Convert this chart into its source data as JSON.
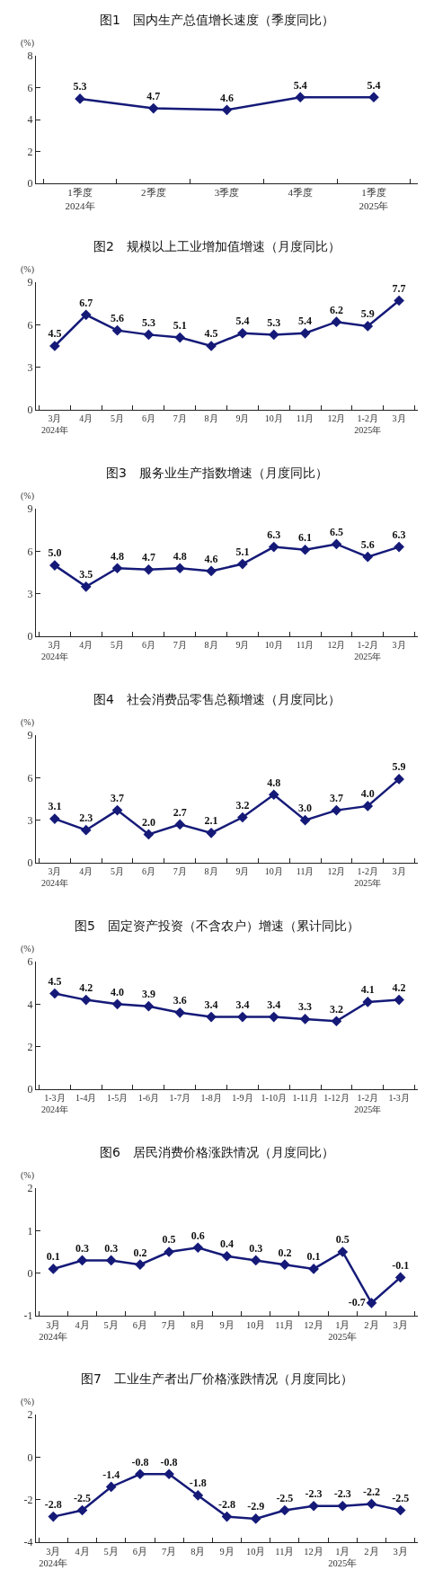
{
  "chart_data": [
    {
      "type": "line",
      "title": "图1　国内生产总值增长速度（季度同比）",
      "ylabel": "(%)",
      "categories": [
        "1季度\n2024年",
        "2季度",
        "3季度",
        "4季度",
        "1季度\n2025年"
      ],
      "series": [
        {
          "color": "#151a78",
          "values": [
            5.3,
            4.7,
            4.6,
            5.4,
            5.4
          ],
          "value_labels": [
            "5.3",
            "4.7",
            "4.6",
            "5.4",
            "5.4"
          ]
        }
      ],
      "ylim": [
        0,
        8
      ],
      "yticks": [
        0,
        2,
        4,
        6,
        8
      ],
      "marker": "diamond",
      "line_style": "solid"
    },
    {
      "type": "line",
      "title": "图2　规模以上工业增加值增速（月度同比）",
      "ylabel": "(%)",
      "categories": [
        "3月\n2024年",
        "4月",
        "5月",
        "6月",
        "7月",
        "8月",
        "9月",
        "10月",
        "11月",
        "12月",
        "1-2月\n2025年",
        "3月"
      ],
      "series": [
        {
          "color": "#151a78",
          "values": [
            4.5,
            6.7,
            5.6,
            5.3,
            5.1,
            4.5,
            5.4,
            5.3,
            5.4,
            6.2,
            5.9,
            7.7
          ],
          "value_labels": [
            "4.5",
            "6.7",
            "5.6",
            "5.3",
            "5.1",
            "4.5",
            "5.4",
            "5.3",
            "5.4",
            "6.2",
            "5.9",
            "7.7"
          ]
        }
      ],
      "ylim": [
        0,
        9
      ],
      "yticks": [
        0,
        3,
        6,
        9
      ],
      "marker": "diamond",
      "line_style": "solid"
    },
    {
      "type": "line",
      "title": "图3　服务业生产指数增速（月度同比）",
      "ylabel": "(%)",
      "categories": [
        "3月\n2024年",
        "4月",
        "5月",
        "6月",
        "7月",
        "8月",
        "9月",
        "10月",
        "11月",
        "12月",
        "1-2月\n2025年",
        "3月"
      ],
      "series": [
        {
          "color": "#151a78",
          "values": [
            5.0,
            3.5,
            4.8,
            4.7,
            4.8,
            4.6,
            5.1,
            6.3,
            6.1,
            6.5,
            5.6,
            6.3
          ],
          "value_labels": [
            "5.0",
            "3.5",
            "4.8",
            "4.7",
            "4.8",
            "4.6",
            "5.1",
            "6.3",
            "6.1",
            "6.5",
            "5.6",
            "6.3"
          ]
        }
      ],
      "ylim": [
        0,
        9
      ],
      "yticks": [
        0,
        3,
        6,
        9
      ],
      "marker": "diamond",
      "line_style": "solid"
    },
    {
      "type": "line",
      "title": "图4　社会消费品零售总额增速（月度同比）",
      "ylabel": "(%)",
      "categories": [
        "3月\n2024年",
        "4月",
        "5月",
        "6月",
        "7月",
        "8月",
        "9月",
        "10月",
        "11月",
        "12月",
        "1-2月\n2025年",
        "3月"
      ],
      "series": [
        {
          "color": "#151a78",
          "values": [
            3.1,
            2.3,
            3.7,
            2.0,
            2.7,
            2.1,
            3.2,
            4.8,
            3.0,
            3.7,
            4.0,
            5.9
          ],
          "value_labels": [
            "3.1",
            "2.3",
            "3.7",
            "2.0",
            "2.7",
            "2.1",
            "3.2",
            "4.8",
            "3.0",
            "3.7",
            "4.0",
            "5.9"
          ]
        }
      ],
      "ylim": [
        0,
        9
      ],
      "yticks": [
        0,
        3,
        6,
        9
      ],
      "marker": "diamond",
      "line_style": "solid"
    },
    {
      "type": "line",
      "title": "图5　固定资产投资（不含农户）增速（累计同比）",
      "ylabel": "(%)",
      "categories": [
        "1-3月\n2024年",
        "1-4月",
        "1-5月",
        "1-6月",
        "1-7月",
        "1-8月",
        "1-9月",
        "1-10月",
        "1-11月",
        "1-12月",
        "1-2月\n2025年",
        "1-3月"
      ],
      "series": [
        {
          "color": "#151a78",
          "values": [
            4.5,
            4.2,
            4.0,
            3.9,
            3.6,
            3.4,
            3.4,
            3.4,
            3.3,
            3.2,
            4.1,
            4.2
          ],
          "value_labels": [
            "4.5",
            "4.2",
            "4.0",
            "3.9",
            "3.6",
            "3.4",
            "3.4",
            "3.4",
            "3.3",
            "3.2",
            "4.1",
            "4.2"
          ]
        }
      ],
      "ylim": [
        0,
        6
      ],
      "yticks": [
        0,
        2,
        4,
        6
      ],
      "marker": "diamond",
      "line_style": "solid"
    },
    {
      "type": "line",
      "title": "图6　居民消费价格涨跌情况（月度同比）",
      "ylabel": "(%)",
      "categories": [
        "3月\n2024年",
        "4月",
        "5月",
        "6月",
        "7月",
        "8月",
        "9月",
        "10月",
        "11月",
        "12月",
        "1月\n2025年",
        "2月",
        "3月"
      ],
      "series": [
        {
          "color": "#151a78",
          "values": [
            0.1,
            0.3,
            0.3,
            0.2,
            0.5,
            0.6,
            0.4,
            0.3,
            0.2,
            0.1,
            0.5,
            -0.7,
            -0.1
          ],
          "value_labels": [
            "0.1",
            "0.3",
            "0.3",
            "0.2",
            "0.5",
            "0.6",
            "0.4",
            "0.3",
            "0.2",
            "0.1",
            "0.5",
            "-0.7",
            "-0.1"
          ]
        }
      ],
      "ylim": [
        -1,
        2
      ],
      "yticks": [
        -1,
        0,
        1,
        2
      ],
      "marker": "diamond",
      "line_style": "solid"
    },
    {
      "type": "line",
      "title": "图7　工业生产者出厂价格涨跌情况（月度同比）",
      "ylabel": "(%)",
      "categories": [
        "3月\n2024年",
        "4月",
        "5月",
        "6月",
        "7月",
        "8月",
        "9月",
        "10月",
        "11月",
        "12月",
        "1月\n2025年",
        "2月",
        "3月"
      ],
      "series": [
        {
          "color": "#151a78",
          "values": [
            -2.8,
            -2.5,
            -1.4,
            -0.8,
            -0.8,
            -1.8,
            -2.8,
            -2.9,
            -2.5,
            -2.3,
            -2.3,
            -2.2,
            -2.5
          ],
          "value_labels": [
            "-2.8",
            "-2.5",
            "-1.4",
            "-0.8",
            "-0.8",
            "-1.8",
            "-2.8",
            "-2.9",
            "-2.5",
            "-2.3",
            "-2.3",
            "-2.2",
            "-2.5"
          ]
        }
      ],
      "ylim": [
        -4,
        2
      ],
      "yticks": [
        -4,
        -2,
        0,
        2
      ],
      "marker": "diamond",
      "line_style": "solid"
    }
  ]
}
